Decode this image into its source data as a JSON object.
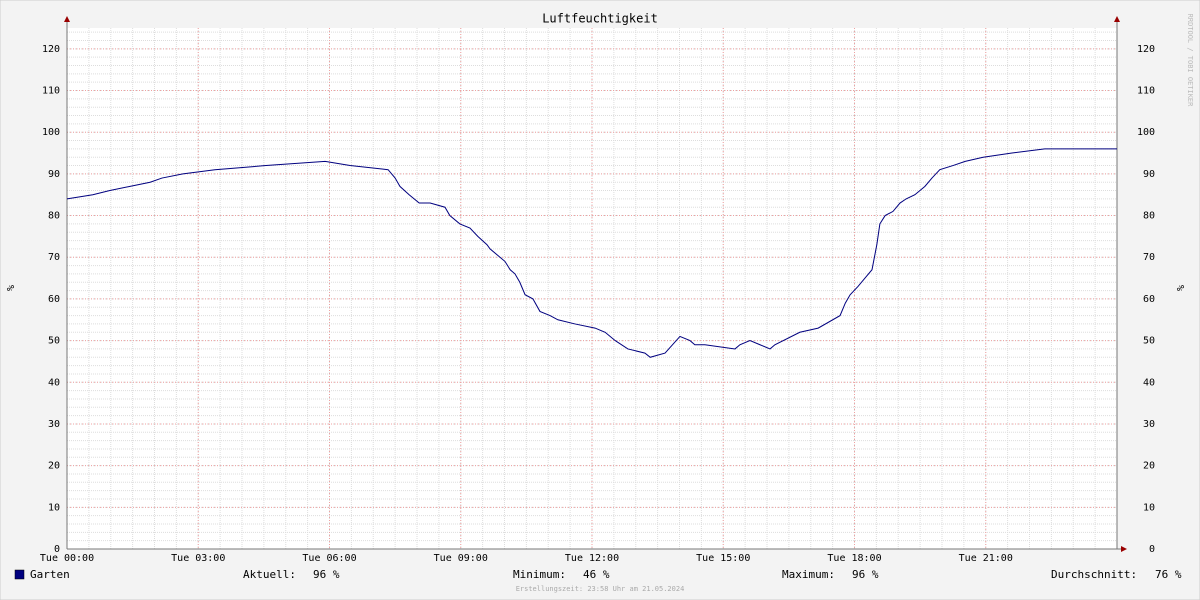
{
  "chart_data": {
    "type": "line",
    "title": "Luftfeuchtigkeit",
    "y_label": "%",
    "x": [
      0,
      0.59,
      0.98,
      1.44,
      1.9,
      2.17,
      2.65,
      3.38,
      4.55,
      5.9,
      6.47,
      7.34,
      7.5,
      7.61,
      7.82,
      8.05,
      8.3,
      8.64,
      8.75,
      8.98,
      9.21,
      9.39,
      9.6,
      9.67,
      10.01,
      10.13,
      10.24,
      10.35,
      10.47,
      10.65,
      10.81,
      11.04,
      11.22,
      11.61,
      12.07,
      12.3,
      12.53,
      12.82,
      13.21,
      13.33,
      13.67,
      14.01,
      14.24,
      14.35,
      14.58,
      15.269,
      15.38,
      15.61,
      15.84,
      16.07,
      16.18,
      16.75,
      17.17,
      17.67,
      17.79,
      17.9,
      18.08,
      18.24,
      18.4,
      18.51,
      18.58,
      18.7,
      18.88,
      19.04,
      19.18,
      19.38,
      19.61,
      19.77,
      19.95,
      20.25,
      20.53,
      20.94,
      21.6,
      22.35,
      23.56,
      24
    ],
    "series": [
      {
        "name": "Garten",
        "color": "#00007f",
        "values": [
          84,
          85,
          86,
          87,
          88,
          89,
          90,
          91,
          92,
          93,
          92,
          91,
          89,
          87,
          85,
          83,
          83,
          82,
          80,
          78,
          77,
          75,
          73,
          72,
          69,
          67,
          66,
          64,
          61,
          60,
          57,
          56,
          55,
          54,
          53,
          52,
          50,
          48,
          47,
          46,
          47,
          51,
          50,
          49,
          49,
          48,
          49,
          50,
          49,
          48,
          49,
          52,
          53,
          56,
          59,
          61,
          63,
          65,
          67,
          73,
          78,
          80,
          81,
          83,
          84,
          85,
          87,
          89,
          91,
          92,
          93,
          94,
          95,
          96,
          96,
          96
        ]
      }
    ],
    "xlim": [
      0,
      24
    ],
    "xticks": [
      {
        "value": 0,
        "label": "Tue 00:00"
      },
      {
        "value": 3,
        "label": "Tue 03:00"
      },
      {
        "value": 6,
        "label": "Tue 06:00"
      },
      {
        "value": 9,
        "label": "Tue 09:00"
      },
      {
        "value": 12,
        "label": "Tue 12:00"
      },
      {
        "value": 15,
        "label": "Tue 15:00"
      },
      {
        "value": 18,
        "label": "Tue 18:00"
      },
      {
        "value": 21,
        "label": "Tue 21:00"
      }
    ],
    "ylim": [
      0,
      125
    ],
    "yticks": [
      0,
      10,
      20,
      30,
      40,
      50,
      60,
      70,
      80,
      90,
      100,
      110,
      120
    ],
    "grid": true,
    "stats": [
      {
        "label": "Aktuell:",
        "value": "96 %"
      },
      {
        "label": "Minimum:",
        "value": "46 %"
      },
      {
        "label": "Maximum:",
        "value": "96 %"
      },
      {
        "label": "Durchschnitt:",
        "value": "76 %"
      }
    ],
    "footer": "Erstellungszeit: 23:58 Uhr am 21.05.2024",
    "watermark": "RRDTOOL / TOBI OETIKER"
  }
}
